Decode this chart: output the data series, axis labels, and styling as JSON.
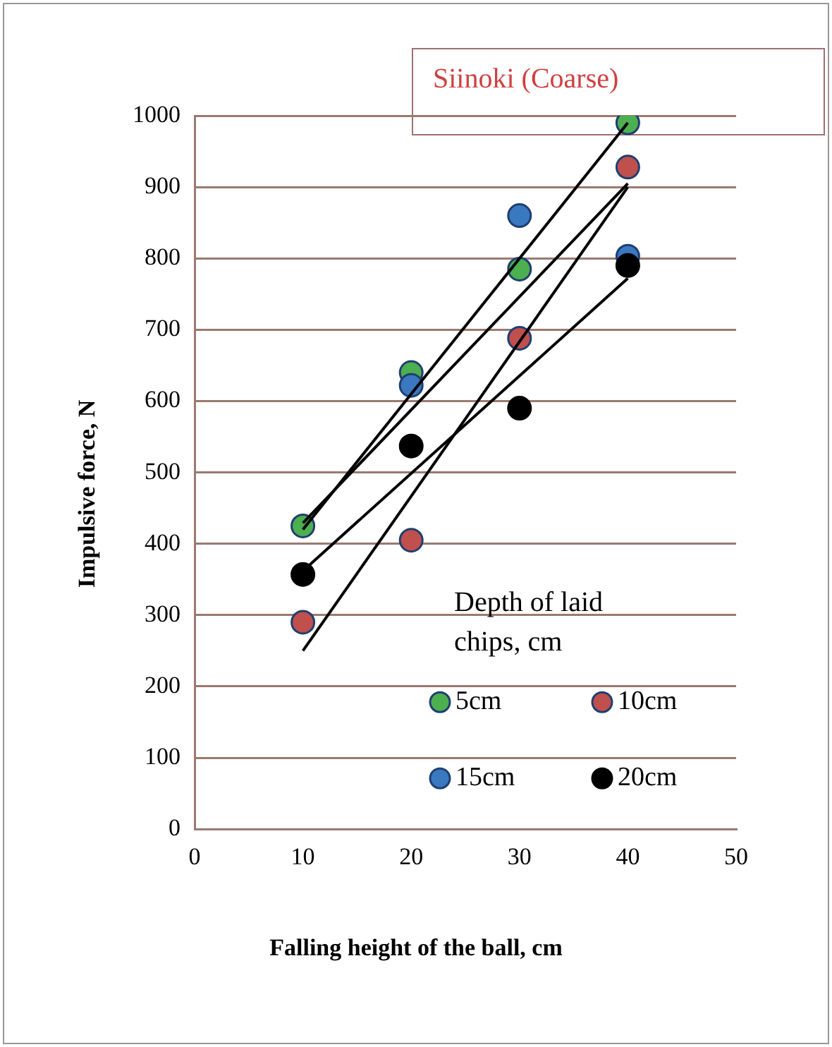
{
  "chart_data": {
    "type": "scatter",
    "title": "Siinoki (Coarse)",
    "xlabel": "Falling height of the ball, cm",
    "ylabel": "Impulsive force, N",
    "legend_title": "Depth of laid chips, cm",
    "legend": "bottom right",
    "grid": "y",
    "marker": "circle",
    "x": [
      10,
      20,
      30,
      40
    ],
    "series": [
      {
        "name": "5cm",
        "color": "#4caf50",
        "values": [
          425,
          640,
          785,
          990
        ]
      },
      {
        "name": "10cm",
        "color": "#c0504d",
        "values": [
          290,
          405,
          688,
          928
        ]
      },
      {
        "name": "15cm",
        "color": "#3a78c0",
        "values": [
          null,
          622,
          860,
          803
        ]
      },
      {
        "name": "20cm",
        "color": "#000000",
        "values": [
          357,
          537,
          590,
          790
        ]
      },
      {
        "type": "line",
        "marker": "none",
        "color": "#000000",
        "values": [
          420,
          null,
          null,
          990
        ]
      },
      {
        "type": "line",
        "marker": "none",
        "color": "#000000",
        "values": [
          250,
          null,
          null,
          900
        ]
      },
      {
        "type": "line",
        "marker": "none",
        "color": "#000000",
        "values": [
          429,
          null,
          null,
          905
        ]
      },
      {
        "type": "line",
        "marker": "none",
        "color": "#000000",
        "values": [
          362,
          null,
          null,
          772
        ]
      }
    ],
    "xlim": [
      0,
      50
    ],
    "xticks": [
      0,
      10,
      20,
      30,
      40,
      50
    ],
    "ylim": [
      0,
      1000
    ],
    "yticks": [
      0,
      100,
      200,
      300,
      400,
      500,
      600,
      700,
      800,
      900,
      1000
    ]
  }
}
